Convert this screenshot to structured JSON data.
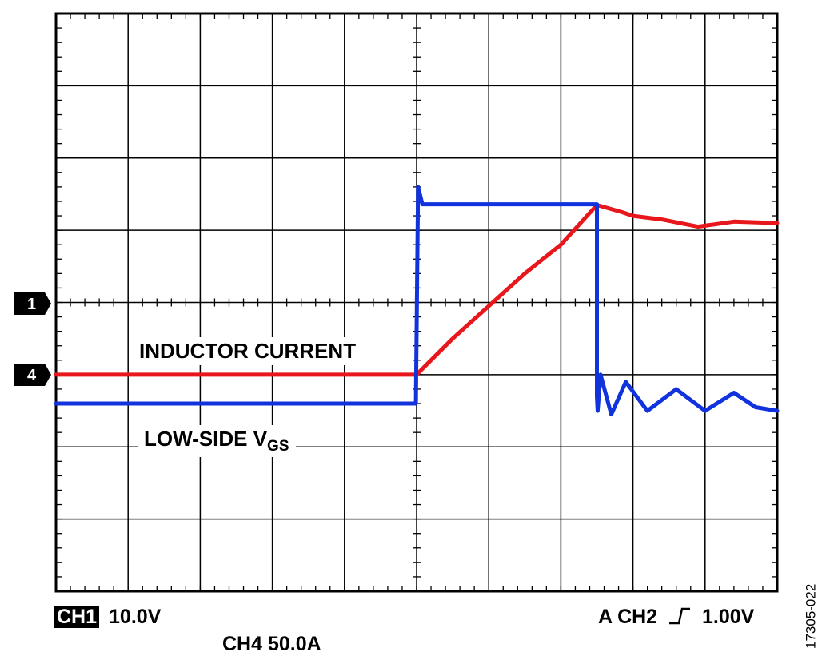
{
  "chart_data": {
    "type": "line",
    "title": "",
    "xlabel": "",
    "ylabel": "",
    "grid": true,
    "grid_divisions": {
      "x": 10,
      "y": 8
    },
    "xlim": [
      0,
      10
    ],
    "ylim": [
      -4,
      4
    ],
    "series": [
      {
        "name": "INDUCTOR CURRENT",
        "color": "#e8171c",
        "x": [
          0,
          5.0,
          5.1,
          5.5,
          6.0,
          6.5,
          7.0,
          7.5,
          7.85,
          8.0,
          8.4,
          8.9,
          9.4,
          10.0
        ],
        "y": [
          -1.0,
          -1.0,
          -0.9,
          -0.5,
          -0.05,
          0.4,
          0.8,
          1.35,
          1.25,
          1.2,
          1.15,
          1.05,
          1.12,
          1.1
        ]
      },
      {
        "name": "LOW-SIDE VGS",
        "color": "#1133dd",
        "x": [
          0,
          4.99,
          5.02,
          5.08,
          5.3,
          6.0,
          7.0,
          7.5,
          7.5,
          7.51,
          7.55,
          7.7,
          7.9,
          8.2,
          8.6,
          9.0,
          9.4,
          9.7,
          10.0
        ],
        "y": [
          -1.4,
          -1.4,
          1.6,
          1.36,
          1.36,
          1.36,
          1.36,
          1.36,
          -1.3,
          -1.5,
          -1.0,
          -1.55,
          -1.1,
          -1.5,
          -1.2,
          -1.5,
          -1.25,
          -1.45,
          -1.5
        ]
      }
    ],
    "channel_markers": [
      {
        "label": "1",
        "level": 0
      },
      {
        "label": "4",
        "level": -1
      }
    ]
  },
  "labels": {
    "inductor": "INDUCTOR CURRENT",
    "vgs_main": "LOW-SIDE V",
    "vgs_sub": "GS",
    "ch1_badge": "CH1",
    "ch1_value": "10.0V",
    "ch4": "CH4 50.0A",
    "trigger_prefix": "A  CH2",
    "trigger_value": "1.00V",
    "figure_id": "17305-022",
    "marker1": "1",
    "marker4": "4"
  }
}
